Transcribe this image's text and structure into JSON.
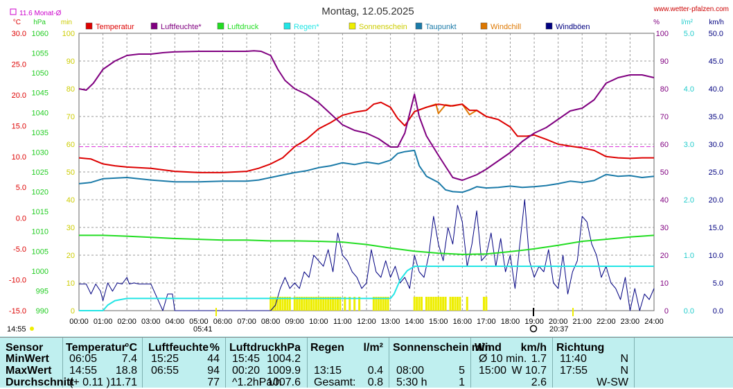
{
  "title": "Montag, 12.05.2025",
  "site": "www.wetter-pfalzen.com",
  "monthly_avg_label": "11.6 Monat-Ø",
  "units": {
    "temp": "°C",
    "pressure": "hPa",
    "minutes": "min",
    "percent": "%",
    "rain": "l/m²",
    "wind": "km/h"
  },
  "sunrise": {
    "left": "14:55",
    "time": "05:41"
  },
  "sunset": "20:37",
  "legend": [
    {
      "label": "Temperatur",
      "color": "#dd0000"
    },
    {
      "label": "Luftfeuchte*",
      "color": "#800080"
    },
    {
      "label": "Luftdruck",
      "color": "#22dd22"
    },
    {
      "label": "Regen*",
      "color": "#22e5e5"
    },
    {
      "label": "Sonnenschein",
      "color": "#eeee00"
    },
    {
      "label": "Taupunkt",
      "color": "#1a7aa8"
    },
    {
      "label": "Windchill",
      "color": "#dd7700"
    },
    {
      "label": "Windböen",
      "color": "#000080"
    }
  ],
  "chart_data": {
    "type": "line",
    "x_ticks": [
      "00:00",
      "01:00",
      "02:00",
      "03:00",
      "04:00",
      "05:00",
      "06:00",
      "07:00",
      "08:00",
      "09:00",
      "10:00",
      "11:00",
      "12:00",
      "13:00",
      "14:00",
      "15:00",
      "16:00",
      "17:00",
      "18:00",
      "19:00",
      "20:00",
      "21:00",
      "22:00",
      "23:00",
      "24:00"
    ],
    "axes": {
      "temp": {
        "label": "°C",
        "ticks": [
          "30.0",
          "25.0",
          "20.0",
          "15.0",
          "10.0",
          "5.0",
          "0.0",
          "-5.0",
          "-10.0",
          "-15.0"
        ],
        "range": [
          -15,
          30
        ]
      },
      "pressure": {
        "label": "hPa",
        "ticks": [
          "1060",
          "1055",
          "1050",
          "1045",
          "1040",
          "1035",
          "1030",
          "1025",
          "1020",
          "1015",
          "1010",
          "1005",
          "1000",
          "995",
          "990"
        ],
        "range": [
          990,
          1060
        ]
      },
      "minutes": {
        "label": "min",
        "ticks": [
          "100",
          "90",
          "80",
          "70",
          "60",
          "50",
          "40",
          "30",
          "20",
          "10",
          "0"
        ],
        "range": [
          0,
          100
        ]
      },
      "humidity": {
        "label": "%",
        "ticks": [
          "100",
          "90",
          "80",
          "70",
          "60",
          "50",
          "40",
          "30",
          "20",
          "10",
          "0"
        ],
        "range": [
          0,
          100
        ]
      },
      "rain": {
        "label": "l/m²",
        "ticks": [
          "5.0",
          "4.0",
          "3.0",
          "2.0",
          "1.0",
          "0.0"
        ],
        "range": [
          0,
          5
        ]
      },
      "wind": {
        "label": "km/h",
        "ticks": [
          "50.0",
          "45.0",
          "40.0",
          "35.0",
          "30.0",
          "25.0",
          "20.0",
          "15.0",
          "10.0",
          "5.0",
          "0.0"
        ],
        "range": [
          0,
          50
        ]
      }
    },
    "monthly_avg_temp": 11.6,
    "series": [
      {
        "name": "Temperatur",
        "axis": "temp",
        "color": "#dd0000",
        "x": [
          0,
          0.5,
          1,
          1.5,
          2,
          3,
          4,
          5,
          6,
          7,
          7.5,
          8,
          8.5,
          9,
          9.5,
          10,
          10.5,
          11,
          11.5,
          12,
          12.3,
          12.6,
          13,
          13.3,
          13.6,
          14,
          14.5,
          15,
          15.5,
          16,
          16.3,
          16.6,
          17,
          17.5,
          18,
          18.3,
          18.7,
          19,
          19.5,
          20,
          20.5,
          21,
          21.5,
          22,
          22.5,
          23,
          23.5,
          24
        ],
        "values": [
          9.8,
          9.6,
          8.8,
          8.5,
          8.3,
          8.1,
          7.6,
          7.4,
          7.4,
          7.6,
          8.1,
          8.8,
          9.8,
          11.6,
          12.8,
          14.5,
          15.5,
          16.7,
          17.2,
          17.5,
          18.5,
          18.8,
          18.0,
          16.2,
          15.0,
          17.3,
          18.0,
          18.5,
          18.2,
          18.5,
          17.5,
          17.5,
          16.5,
          16.0,
          14.8,
          13.3,
          13.3,
          13.5,
          12.8,
          12.0,
          11.7,
          11.4,
          11.0,
          10.0,
          9.8,
          9.7,
          9.8,
          9.8
        ]
      },
      {
        "name": "Luftfeuchte*",
        "axis": "humidity",
        "color": "#800080",
        "x": [
          0,
          0.3,
          0.6,
          1,
          1.5,
          2,
          2.5,
          3,
          3.5,
          4,
          5,
          6,
          7,
          7.3,
          7.6,
          8,
          8.3,
          8.6,
          9,
          9.5,
          10,
          10.5,
          11,
          11.5,
          12,
          12.5,
          13,
          13.3,
          13.6,
          14,
          14.2,
          14.5,
          15,
          15.3,
          15.6,
          16,
          16.3,
          16.6,
          17,
          17.5,
          18,
          18.5,
          19,
          19.5,
          20,
          20.5,
          21,
          21.5,
          22,
          22.5,
          23,
          23.5,
          24
        ],
        "values": [
          80,
          79.5,
          82,
          87,
          90,
          92,
          92.5,
          92.5,
          93,
          93.3,
          93.5,
          93.5,
          93.5,
          93.7,
          93.5,
          92,
          87,
          83,
          80,
          78,
          75,
          71,
          67,
          65,
          64,
          62,
          59,
          59,
          64,
          78,
          70,
          63,
          56,
          52,
          48,
          47,
          48,
          49,
          51,
          54,
          57,
          61,
          64,
          66,
          69,
          72,
          73,
          76,
          82,
          84,
          85,
          85,
          84
        ]
      },
      {
        "name": "Luftdruck",
        "axis": "pressure",
        "color": "#22dd22",
        "x": [
          0,
          1,
          2,
          3,
          4,
          5,
          6,
          7,
          8,
          9,
          10,
          11,
          12,
          13,
          14,
          15,
          16,
          17,
          18,
          19,
          20,
          21,
          22,
          23,
          24
        ],
        "values": [
          1009.0,
          1009.0,
          1008.8,
          1008.5,
          1008.2,
          1008.0,
          1007.8,
          1007.8,
          1007.6,
          1007.6,
          1007.5,
          1007.3,
          1006.7,
          1005.8,
          1005.0,
          1004.5,
          1004.2,
          1004.3,
          1004.9,
          1005.6,
          1006.5,
          1007.5,
          1008.0,
          1008.6,
          1009.0
        ]
      },
      {
        "name": "Regen*",
        "axis": "rain",
        "color": "#22e5e5",
        "x": [
          0,
          1,
          1.2,
          1.5,
          2,
          2.5,
          3,
          13,
          13.15,
          13.4,
          13.7,
          14,
          14.3,
          15,
          16,
          17,
          18,
          19,
          20,
          21,
          22,
          23,
          24
        ],
        "values": [
          0,
          0,
          0.1,
          0.18,
          0.22,
          0.22,
          0.22,
          0.22,
          0.3,
          0.55,
          0.72,
          0.8,
          0.8,
          0.8,
          0.8,
          0.8,
          0.8,
          0.8,
          0.8,
          0.8,
          0.8,
          0.8,
          0.8
        ]
      },
      {
        "name": "Taupunkt",
        "axis": "temp",
        "color": "#1a7aa8",
        "x": [
          0,
          0.5,
          1,
          2,
          3,
          4,
          5,
          6,
          7,
          7.5,
          8,
          8.5,
          9,
          9.5,
          10,
          10.5,
          11,
          11.5,
          12,
          12.5,
          13,
          13.3,
          13.6,
          14,
          14.2,
          14.5,
          15,
          15.3,
          15.6,
          16,
          16.3,
          16.6,
          17,
          17.5,
          18,
          18.5,
          19,
          19.5,
          20,
          20.5,
          21,
          21.5,
          22,
          22.5,
          23,
          23.5,
          24
        ],
        "values": [
          5.6,
          5.8,
          6.4,
          6.6,
          6.2,
          5.9,
          5.9,
          6.0,
          6.0,
          6.2,
          6.6,
          7.0,
          7.4,
          7.7,
          8.2,
          8.5,
          9.0,
          8.7,
          9.1,
          8.8,
          9.4,
          10.5,
          10.8,
          11.0,
          8.5,
          6.8,
          5.8,
          4.6,
          4.3,
          4.2,
          4.6,
          5.1,
          4.9,
          5.0,
          5.2,
          5.0,
          5.1,
          5.3,
          5.6,
          6.0,
          5.8,
          6.1,
          7.1,
          6.8,
          6.9,
          6.6,
          6.8
        ]
      },
      {
        "name": "Windchill",
        "axis": "temp",
        "color": "#dd7700",
        "x": [
          14,
          14.5,
          14.9,
          15,
          15.3,
          15.6,
          16,
          16.3,
          16.6,
          17
        ],
        "values": [
          17.3,
          18.0,
          18.5,
          17.0,
          18.4,
          18.2,
          18.5,
          16.8,
          17.5,
          16.5
        ]
      },
      {
        "name": "Windböen",
        "axis": "wind",
        "color": "#000080",
        "x": [
          0,
          0.3,
          0.5,
          0.7,
          0.9,
          1.0,
          1.2,
          1.4,
          1.6,
          1.8,
          2.0,
          2.1,
          2.3,
          2.5,
          3.0,
          3.5,
          3.7,
          3.9,
          4.0,
          4.5,
          5,
          6,
          7,
          8.0,
          8.2,
          8.4,
          8.6,
          8.8,
          9.0,
          9.2,
          9.4,
          9.6,
          9.8,
          10.0,
          10.2,
          10.4,
          10.6,
          10.8,
          11.0,
          11.2,
          11.4,
          11.6,
          11.8,
          12.0,
          12.2,
          12.4,
          12.6,
          12.8,
          13.0,
          13.2,
          13.4,
          13.6,
          13.8,
          14.0,
          14.2,
          14.4,
          14.6,
          14.8,
          15.0,
          15.2,
          15.4,
          15.6,
          15.8,
          16.0,
          16.2,
          16.4,
          16.6,
          16.8,
          17.0,
          17.2,
          17.4,
          17.6,
          17.8,
          18.0,
          18.2,
          18.4,
          18.6,
          18.8,
          19.0,
          19.2,
          19.4,
          19.6,
          19.8,
          20.0,
          20.2,
          20.4,
          20.6,
          20.8,
          21.0,
          21.2,
          21.4,
          21.6,
          21.8,
          22.0,
          22.2,
          22.4,
          22.6,
          22.8,
          23.0,
          23.2,
          23.4,
          23.6,
          23.8,
          24.0
        ],
        "values": [
          4.8,
          4.8,
          3.0,
          4.8,
          3.5,
          1.8,
          5.0,
          3.5,
          5.0,
          4.8,
          6.0,
          4.8,
          5.0,
          4.8,
          4.8,
          0,
          3.0,
          3.0,
          0,
          0,
          0,
          0,
          0,
          0,
          1,
          4,
          6,
          4,
          5,
          4,
          7,
          6,
          10,
          9,
          8,
          11,
          7,
          14,
          10,
          9,
          7,
          6,
          4,
          5,
          11,
          7,
          6,
          9,
          6,
          8,
          5,
          6,
          4,
          10,
          7,
          6,
          10,
          17,
          12,
          9,
          15,
          12,
          19,
          16,
          8,
          12,
          18,
          9,
          10,
          14,
          8,
          13,
          7,
          10,
          4,
          12,
          20,
          9,
          6,
          8,
          7,
          11,
          5,
          4,
          10,
          3,
          7,
          9,
          17,
          16,
          12,
          10,
          6,
          8,
          5,
          4,
          2,
          6,
          0,
          4,
          0,
          3,
          2,
          4
        ]
      }
    ],
    "sunshine_bars": [
      8.0,
      8.1,
      8.2,
      8.3,
      8.4,
      8.5,
      8.6,
      8.7,
      8.8,
      9.0,
      9.1,
      9.2,
      9.3,
      9.4,
      9.5,
      9.6,
      9.7,
      9.8,
      9.9,
      10.0,
      10.1,
      10.2,
      10.3,
      10.4,
      10.5,
      10.6,
      10.7,
      10.8,
      10.9,
      11.1,
      11.3,
      11.5,
      11.7,
      12.3,
      12.4,
      12.5,
      12.6,
      12.7,
      12.8,
      12.9,
      14.0,
      14.1,
      14.2,
      14.3,
      14.5,
      14.6,
      14.7,
      14.8,
      14.9,
      15.0,
      15.1,
      15.2,
      15.3,
      15.5,
      15.6,
      15.7,
      15.8,
      15.9,
      16.2,
      16.9,
      17.0
    ]
  },
  "table": {
    "col_headers": [
      "Sensor",
      "Temperatur",
      "°C",
      "Luftfeuchte",
      "%",
      "Luftdruck",
      "hPa",
      "Regen",
      "l/m²",
      "Sonnenschein min",
      "Wind",
      "km/h",
      "Richtung"
    ],
    "rows": [
      {
        "label": "MinWert",
        "t_time": "06:05",
        "t_val": "7.4",
        "h_time": "15:25",
        "h_val": "44",
        "p_time": "15:45",
        "p_val": "1004.2",
        "r_time": "",
        "r_val": "",
        "s_time": "",
        "s_val": "",
        "w_label": "Ø 10 min.",
        "w_val": "1.7",
        "d_time": "11:40",
        "d_val": "N"
      },
      {
        "label": "MaxWert",
        "t_time": "14:55",
        "t_val": "18.8",
        "h_time": "06:55",
        "h_val": "94",
        "p_time": "00:20",
        "p_val": "1009.9",
        "r_time": "13:15",
        "r_val": "0.4",
        "s_time": "08:00",
        "s_val": "5",
        "w_label": "15:00",
        "w_val": "W 10.7",
        "d_time": "17:55",
        "d_val": "N"
      },
      {
        "label": "Durchschnitt",
        "t_time": "(+ 0.11 )",
        "t_val": "11.71",
        "h_time": "",
        "h_val": "77",
        "p_time": "^1.2hPa/h",
        "p_val": "1007.6",
        "r_time": "Gesamt:",
        "r_val": "0.8",
        "s_time": "5:30 h",
        "s_val": "1",
        "w_label": "",
        "w_val": "2.6",
        "d_time": "",
        "d_val": "W-SW"
      }
    ]
  }
}
